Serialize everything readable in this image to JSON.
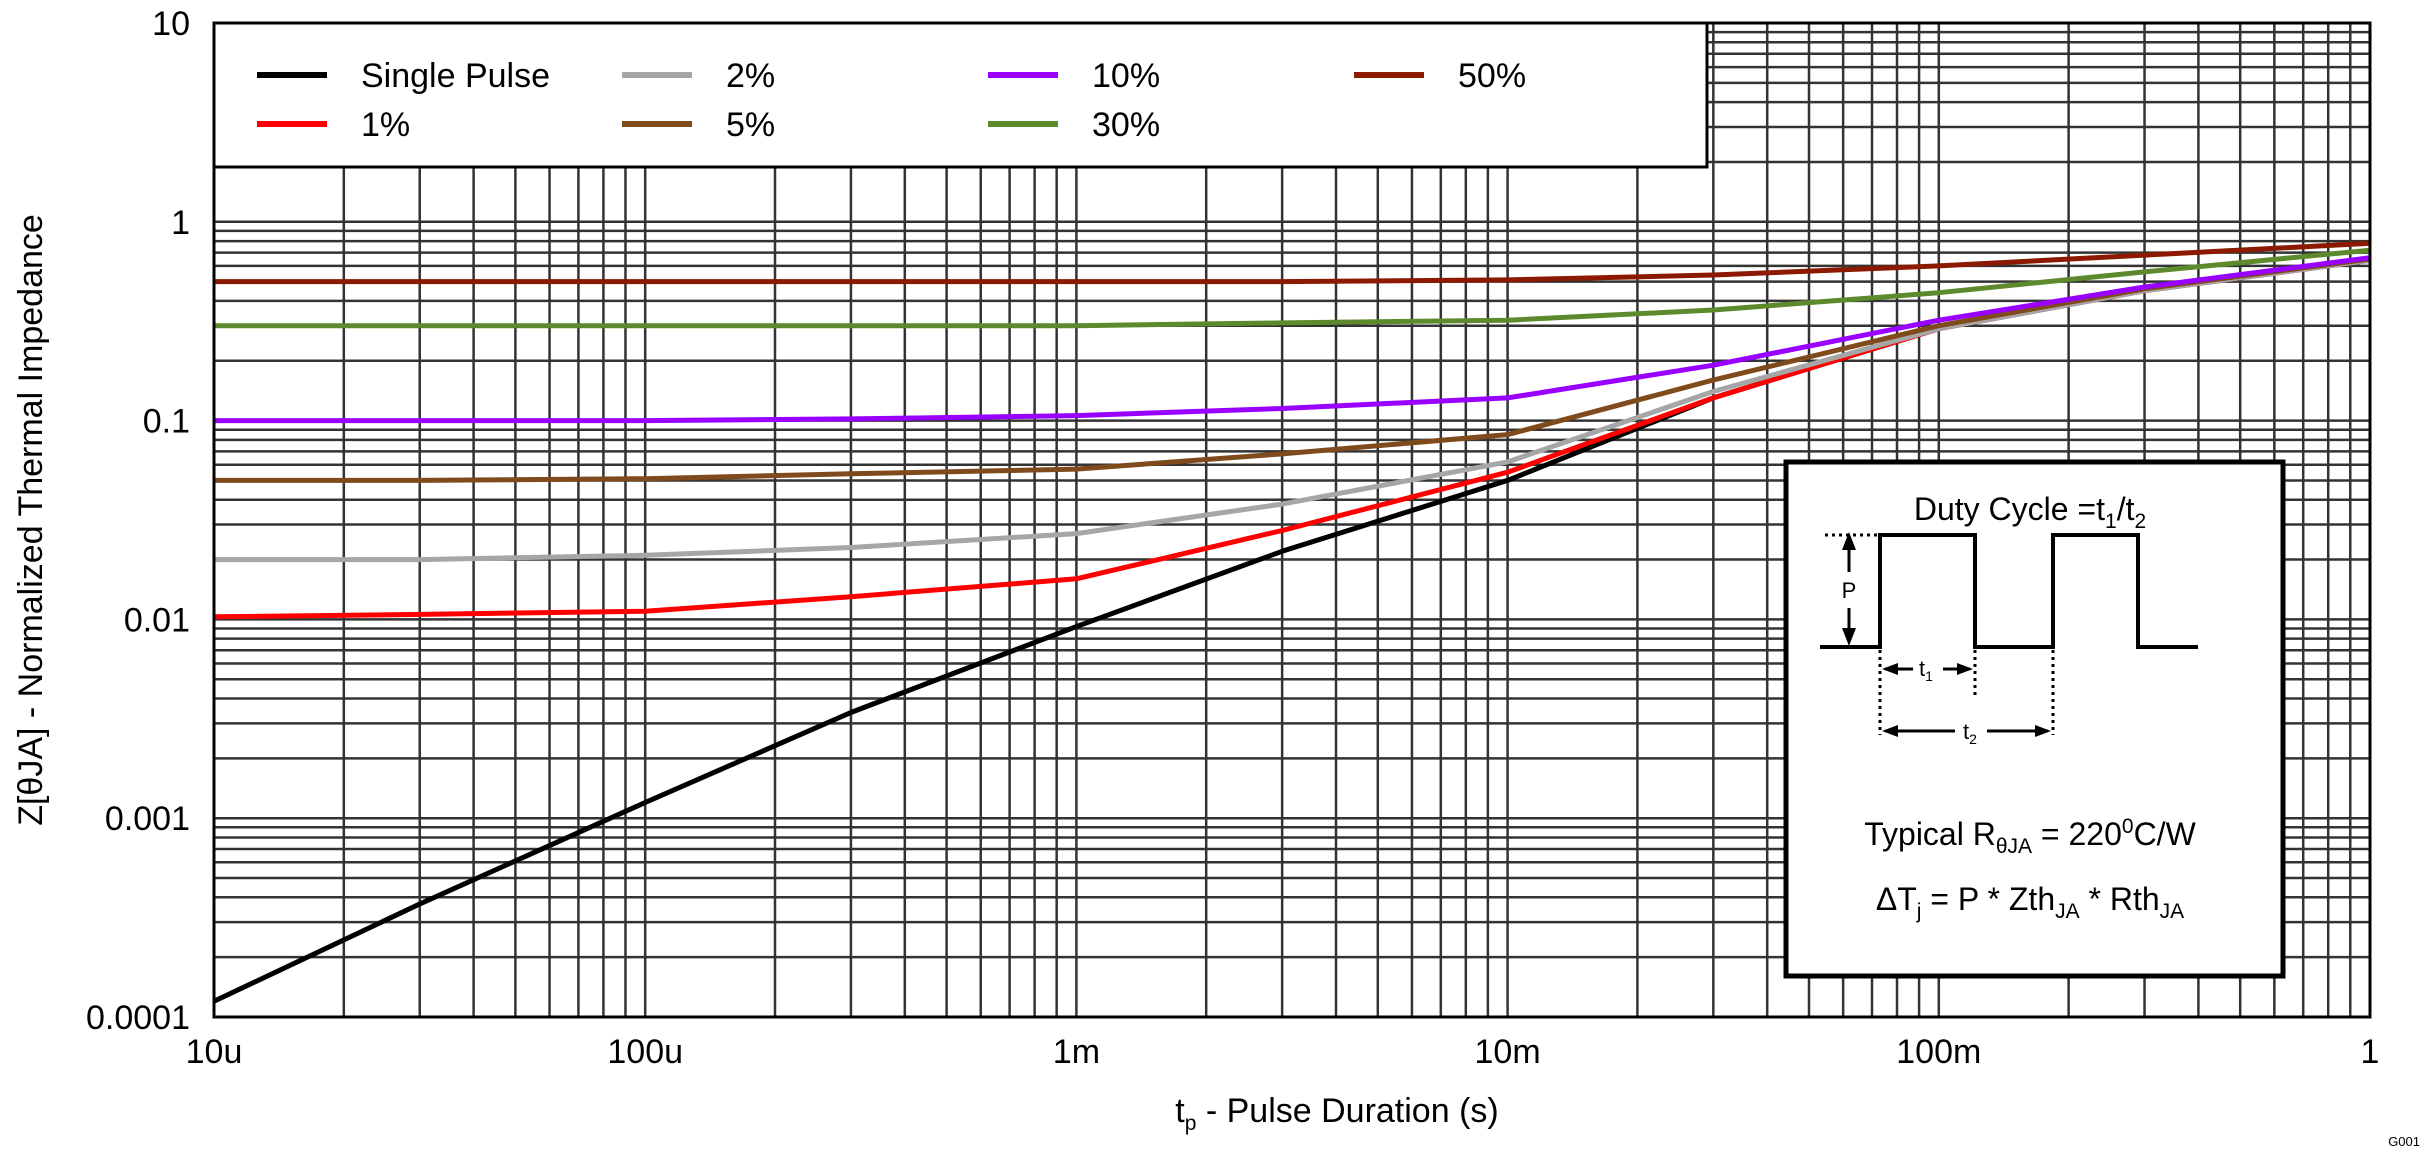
{
  "chart_data": {
    "type": "line",
    "xlabel": {
      "main": "t",
      "sub": "p",
      "rest": " - Pulse Duration (s)"
    },
    "ylabel": "Z[θJA] - Normalized Thermal Impedance",
    "x_scale": "log",
    "y_scale": "log",
    "xlim": [
      1e-05,
      1
    ],
    "ylim": [
      0.0001,
      10
    ],
    "x_ticks": [
      1e-05,
      0.0001,
      0.001,
      0.01,
      0.1,
      1
    ],
    "x_tick_labels": [
      "10u",
      "100u",
      "1m",
      "10m",
      "100m",
      "1"
    ],
    "y_ticks": [
      0.0001,
      0.001,
      0.01,
      0.1,
      1,
      10
    ],
    "y_tick_labels": [
      "0.0001",
      "0.001",
      "0.01",
      "0.1",
      "1",
      "10"
    ],
    "grid": true,
    "legend_position": "top-left",
    "x": [
      1e-05,
      3e-05,
      0.0001,
      0.0003,
      0.001,
      0.003,
      0.01,
      0.03,
      0.1,
      0.3,
      1
    ],
    "series": [
      {
        "name": "Single Pulse",
        "color": "#000000",
        "values": [
          0.00012,
          0.00037,
          0.0012,
          0.0034,
          0.0092,
          0.022,
          0.05,
          0.13,
          0.29,
          0.45,
          0.64
        ]
      },
      {
        "name": "1%",
        "color": "#ff0000",
        "values": [
          0.0103,
          0.0106,
          0.011,
          0.013,
          0.016,
          0.028,
          0.055,
          0.13,
          0.29,
          0.45,
          0.64
        ]
      },
      {
        "name": "2%",
        "color": "#a6a6a6",
        "values": [
          0.02,
          0.02,
          0.021,
          0.023,
          0.027,
          0.038,
          0.062,
          0.14,
          0.29,
          0.45,
          0.64
        ]
      },
      {
        "name": "5%",
        "color": "#7f4a1c",
        "values": [
          0.05,
          0.05,
          0.051,
          0.054,
          0.057,
          0.068,
          0.085,
          0.16,
          0.3,
          0.46,
          0.65
        ]
      },
      {
        "name": "10%",
        "color": "#9900ff",
        "values": [
          0.1,
          0.1,
          0.1,
          0.102,
          0.106,
          0.115,
          0.13,
          0.19,
          0.32,
          0.47,
          0.66
        ]
      },
      {
        "name": "30%",
        "color": "#5e8a2e",
        "values": [
          0.3,
          0.3,
          0.3,
          0.3,
          0.3,
          0.31,
          0.32,
          0.36,
          0.44,
          0.56,
          0.72
        ]
      },
      {
        "name": "50%",
        "color": "#8b1a00",
        "values": [
          0.5,
          0.5,
          0.5,
          0.5,
          0.5,
          0.5,
          0.51,
          0.54,
          0.6,
          0.68,
          0.78
        ]
      }
    ],
    "inset": {
      "title": {
        "main": "Duty Cycle =t",
        "s1": "1",
        "mid": "/t",
        "s2": "2"
      },
      "p_label": "P",
      "t1_label": {
        "main": "t",
        "sub": "1"
      },
      "t2_label": {
        "main": "t",
        "sub": "2"
      },
      "rtheta": {
        "pre": "Typical R",
        "sub": "θJA",
        "mid": " = 220",
        "sup": "0",
        "post": "C/W"
      },
      "delta": {
        "pre": "ΔT",
        "s1": "j",
        "mid": " = P * Zth",
        "s2": "JA",
        "mid2": " * Rth",
        "s3": "JA"
      }
    },
    "figure_id": "G001"
  }
}
